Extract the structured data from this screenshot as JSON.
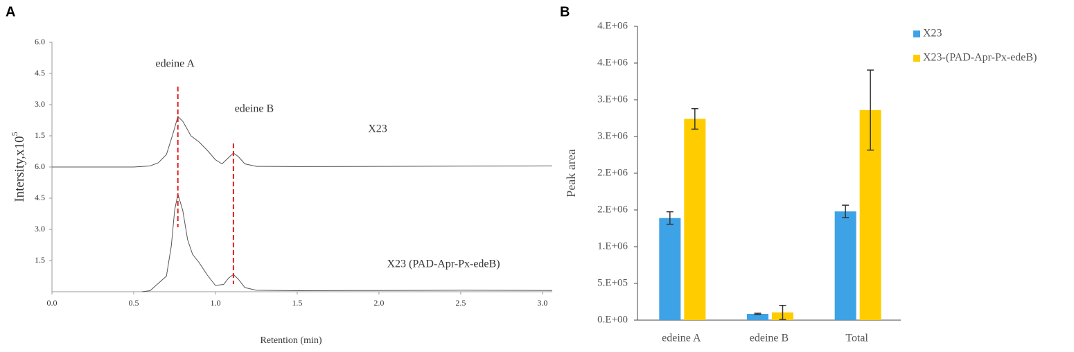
{
  "chart_data": [
    {
      "type": "line",
      "panel": "A",
      "xlabel": "Retention (min)",
      "ylabel": "Intersity,x10",
      "ylabel_exponent": "5",
      "xlim": [
        0,
        3.06
      ],
      "xticks": [
        {
          "value": 0,
          "label": "0.0"
        },
        0.5,
        {
          "value": 1,
          "label": "1.0"
        },
        1.5,
        {
          "value": 2,
          "label": "2.0"
        },
        2.5,
        {
          "value": 3,
          "label": "3.0"
        }
      ],
      "ylim": [
        0,
        12
      ],
      "yticks": [
        1.5,
        {
          "value": 3,
          "label": "3.0"
        },
        4.5,
        {
          "value": 6,
          "label": "6.0"
        },
        {
          "value": 7.5,
          "label": "1.5"
        },
        {
          "value": 9,
          "label": "3.0"
        },
        {
          "value": 10.5,
          "label": "4.5"
        },
        {
          "value": 12,
          "label": "6.0"
        }
      ],
      "annotations": [
        {
          "text": "edeine A",
          "x": 0.77,
          "color": "#e0201e"
        },
        {
          "text": "edeine B",
          "x": 1.11,
          "color": "#e0201e"
        }
      ],
      "series": [
        {
          "name": "X23",
          "color": "#555555",
          "x": [
            0,
            0.5,
            0.6,
            0.65,
            0.7,
            0.74,
            0.77,
            0.8,
            0.85,
            0.9,
            0.95,
            1.0,
            1.04,
            1.08,
            1.11,
            1.14,
            1.18,
            1.25,
            1.5,
            2.0,
            2.5,
            3.06
          ],
          "values": [
            6.0,
            6.0,
            6.05,
            6.2,
            6.6,
            7.6,
            8.43,
            8.2,
            7.5,
            7.2,
            6.8,
            6.35,
            6.15,
            6.45,
            6.67,
            6.5,
            6.15,
            6.03,
            6.02,
            6.03,
            6.04,
            6.05
          ]
        },
        {
          "name": "X23 (PAD-Apr-Px-edeB)",
          "color": "#555555",
          "x": [
            0.55,
            0.6,
            0.65,
            0.7,
            0.73,
            0.75,
            0.77,
            0.8,
            0.83,
            0.86,
            0.9,
            0.95,
            1.0,
            1.05,
            1.08,
            1.11,
            1.14,
            1.18,
            1.25,
            1.5,
            2.0,
            2.5,
            3.06
          ],
          "values": [
            0,
            0.05,
            0.4,
            0.75,
            2.2,
            3.9,
            4.7,
            3.9,
            2.5,
            1.8,
            1.4,
            0.8,
            0.3,
            0.35,
            0.65,
            0.83,
            0.6,
            0.2,
            0.07,
            0.05,
            0.06,
            0.07,
            0.06
          ]
        }
      ]
    },
    {
      "type": "bar",
      "panel": "B",
      "ylabel": "Peak area",
      "categories": [
        "edeine A",
        "edeine B",
        "Total"
      ],
      "ylim": [
        0,
        4000000
      ],
      "yticks": [
        {
          "value": 0,
          "label": "0.E+00"
        },
        {
          "value": 500000,
          "label": "5.E+05"
        },
        {
          "value": 1000000,
          "label": "1.E+06"
        },
        {
          "value": 1500000,
          "label": "2.E+06"
        },
        {
          "value": 2000000,
          "label": "2.E+06"
        },
        {
          "value": 2500000,
          "label": "3.E+06"
        },
        {
          "value": 3000000,
          "label": "3.E+06"
        },
        {
          "value": 3500000,
          "label": "4.E+06"
        },
        {
          "value": 4000000,
          "label": "4.E+06"
        }
      ],
      "legend": "upper right",
      "series": [
        {
          "name": "X23",
          "color": "#3ea2e6",
          "values": [
            1390000,
            85000,
            1480000
          ],
          "errors": [
            85000,
            8000,
            85000
          ]
        },
        {
          "name": "X23-(PAD-Apr-Px-edeB)",
          "color": "#ffcc00",
          "values": [
            2740000,
            105000,
            2860000
          ],
          "errors": [
            140000,
            95000,
            545000
          ]
        }
      ]
    }
  ]
}
